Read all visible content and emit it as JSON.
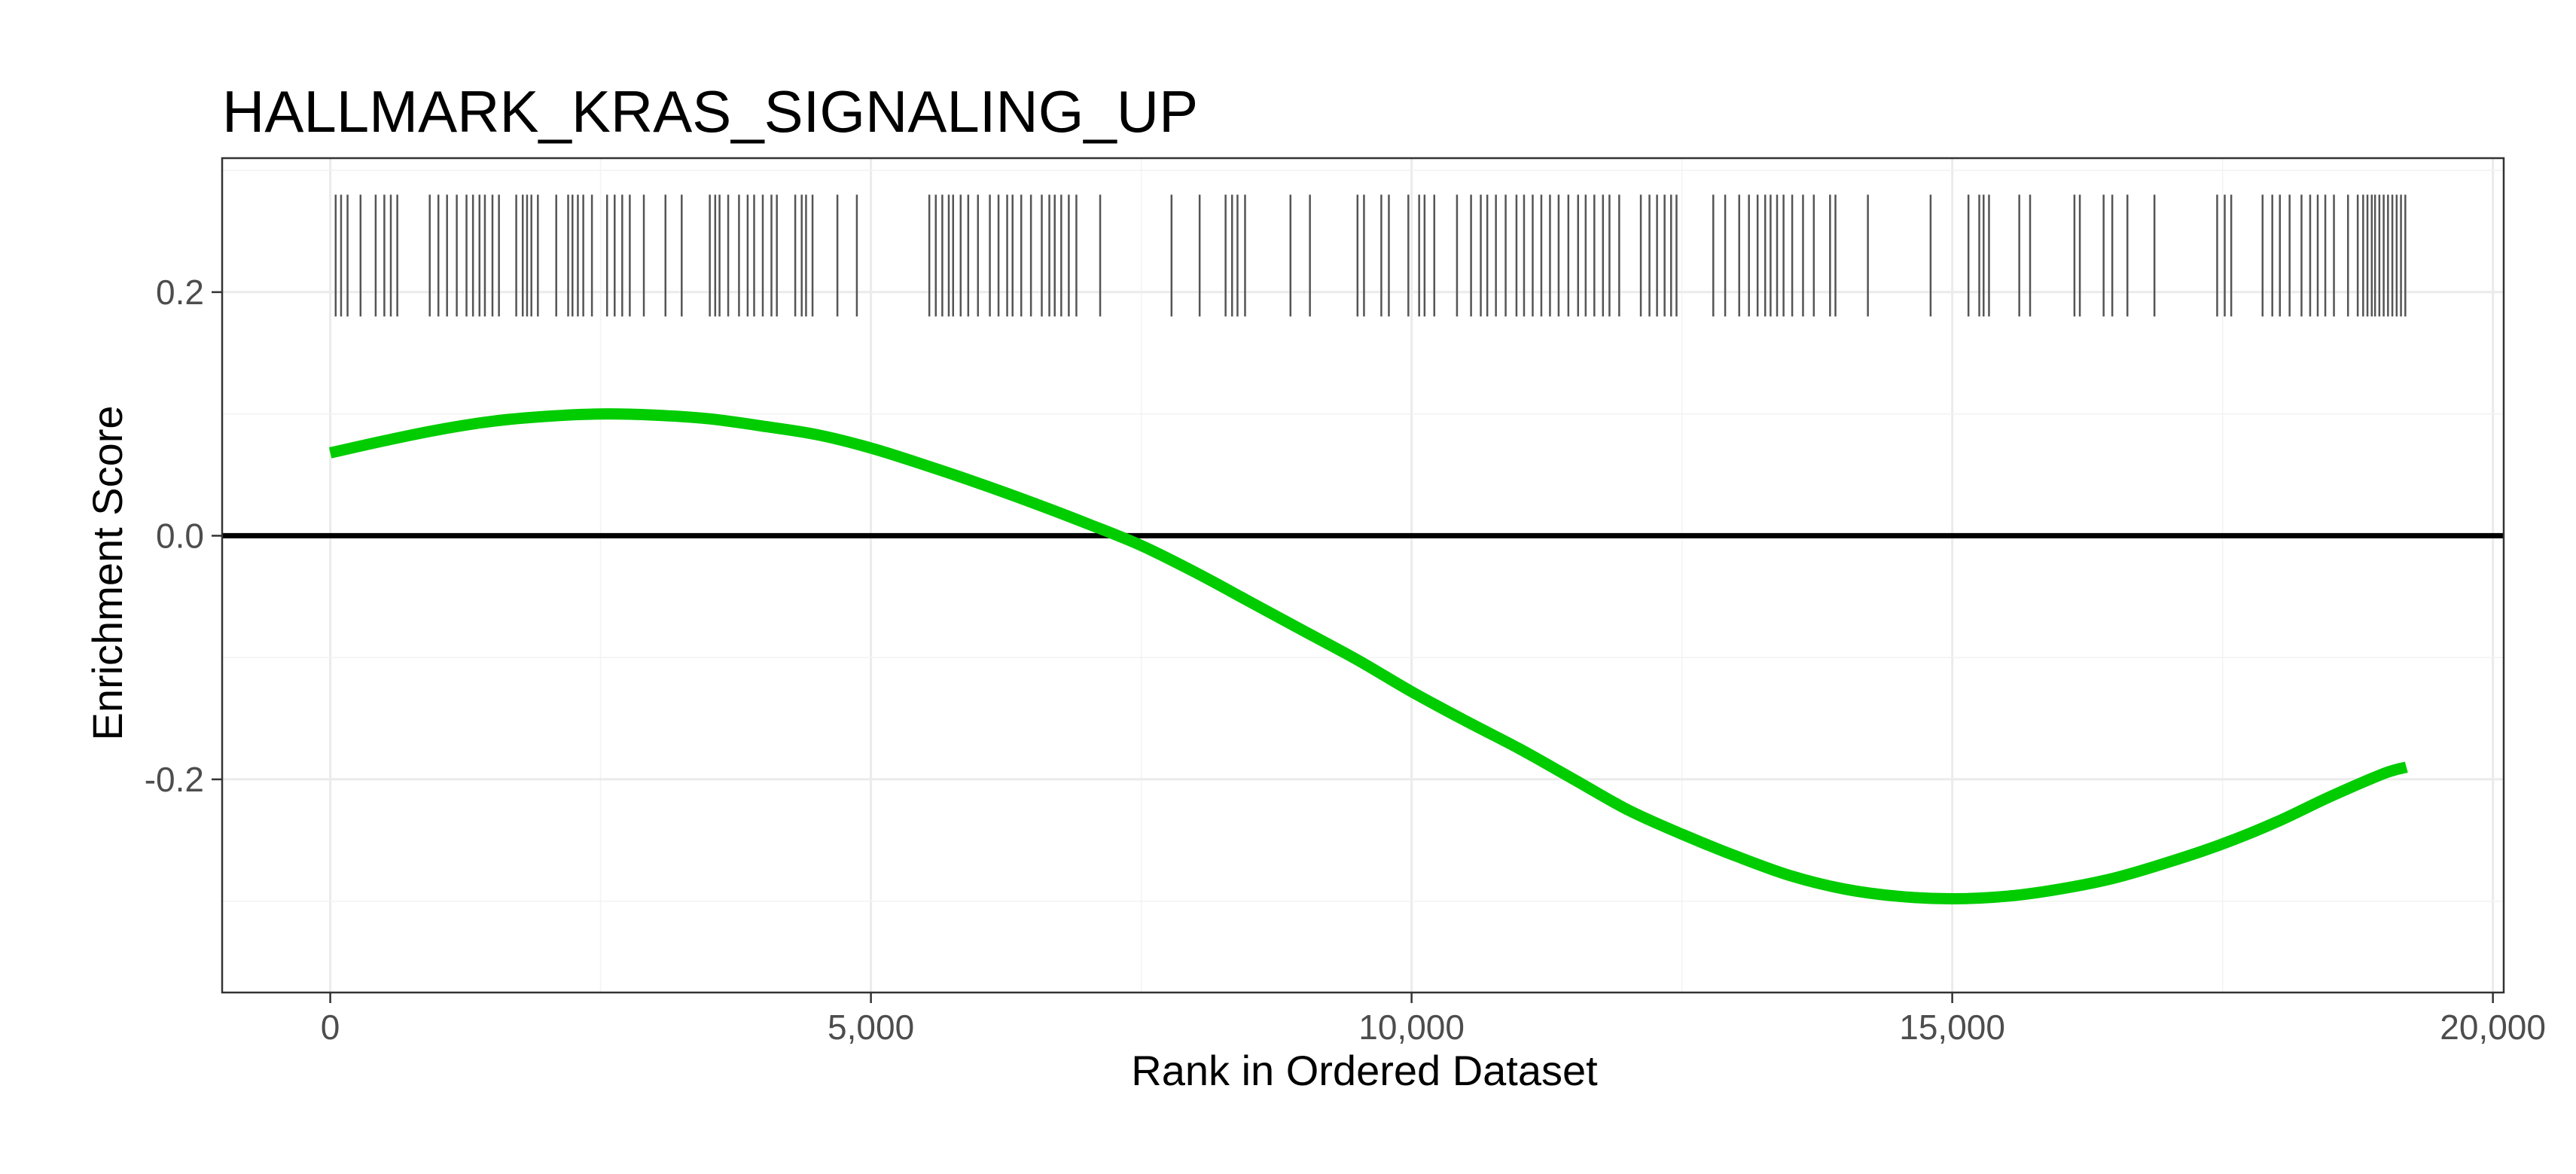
{
  "chart_data": {
    "type": "line",
    "title": "HALLMARK_KRAS_SIGNALING_UP",
    "xlabel": "Rank in Ordered Dataset",
    "ylabel": "Enrichment Score",
    "xlim": [
      -1000,
      20100
    ],
    "ylim": [
      -0.375,
      0.31
    ],
    "x_ticks": [
      0,
      5000,
      10000,
      15000,
      20000
    ],
    "x_tick_labels": [
      "0",
      "5,000",
      "10,000",
      "15,000",
      "20,000"
    ],
    "y_ticks": [
      -0.2,
      0.0,
      0.2
    ],
    "y_tick_labels": [
      "-0.2",
      "0.0",
      "0.2"
    ],
    "grid": true,
    "legend": "none",
    "line_color": "#00cc00",
    "zero_line_color": "#000000",
    "rug_color": "#555555",
    "rug_y_range": [
      0.18,
      0.28
    ],
    "series": [
      {
        "x": [
          0,
          500,
          1000,
          1500,
          2000,
          2500,
          3000,
          3500,
          4000,
          4500,
          5000,
          5500,
          6000,
          6500,
          7000,
          7500,
          8000,
          8500,
          9000,
          9500,
          10000,
          10500,
          11000,
          11500,
          12000,
          12500,
          13000,
          13500,
          14000,
          14500,
          15000,
          15500,
          16000,
          16500,
          17000,
          17500,
          18000,
          18500,
          19000,
          19200
        ],
        "values": [
          0.068,
          0.078,
          0.087,
          0.094,
          0.098,
          0.1,
          0.099,
          0.096,
          0.09,
          0.083,
          0.072,
          0.058,
          0.043,
          0.027,
          0.01,
          -0.008,
          -0.03,
          -0.054,
          -0.078,
          -0.102,
          -0.128,
          -0.152,
          -0.175,
          -0.2,
          -0.225,
          -0.245,
          -0.263,
          -0.279,
          -0.29,
          -0.296,
          -0.298,
          -0.296,
          -0.29,
          -0.281,
          -0.268,
          -0.253,
          -0.235,
          -0.214,
          -0.195,
          -0.19
        ]
      }
    ],
    "rug_positions": [
      50,
      100,
      160,
      280,
      420,
      500,
      560,
      620,
      920,
      1000,
      1080,
      1170,
      1260,
      1320,
      1380,
      1430,
      1500,
      1560,
      1720,
      1780,
      1820,
      1860,
      1920,
      2090,
      2200,
      2240,
      2290,
      2340,
      2420,
      2560,
      2630,
      2700,
      2770,
      2900,
      3100,
      3250,
      3510,
      3560,
      3600,
      3680,
      3780,
      3860,
      3920,
      4000,
      4080,
      4130,
      4300,
      4360,
      4400,
      4460,
      4690,
      4870,
      5540,
      5600,
      5660,
      5720,
      5760,
      5830,
      5900,
      5990,
      6100,
      6180,
      6260,
      6310,
      6390,
      6480,
      6580,
      6650,
      6700,
      6760,
      6830,
      6900,
      7120,
      7780,
      8040,
      8280,
      8340,
      8390,
      8460,
      8880,
      9060,
      9500,
      9560,
      9720,
      9790,
      9970,
      10070,
      10120,
      10210,
      10420,
      10550,
      10640,
      10700,
      10780,
      10870,
      10970,
      11040,
      11120,
      11200,
      11280,
      11360,
      11450,
      11540,
      11610,
      11690,
      11770,
      11830,
      11920,
      12120,
      12200,
      12270,
      12340,
      12400,
      12450,
      12790,
      12900,
      13030,
      13120,
      13200,
      13270,
      13320,
      13380,
      13440,
      13520,
      13620,
      13720,
      13870,
      13920,
      14220,
      14800,
      15150,
      15250,
      15290,
      15340,
      15620,
      15720,
      16130,
      16180,
      16400,
      16480,
      16620,
      16870,
      17450,
      17520,
      17580,
      17870,
      17960,
      18030,
      18120,
      18230,
      18310,
      18380,
      18450,
      18530,
      18660,
      18750,
      18800,
      18840,
      18880,
      18910,
      18950,
      18990,
      19030,
      19070,
      19110,
      19150,
      19190
    ]
  }
}
